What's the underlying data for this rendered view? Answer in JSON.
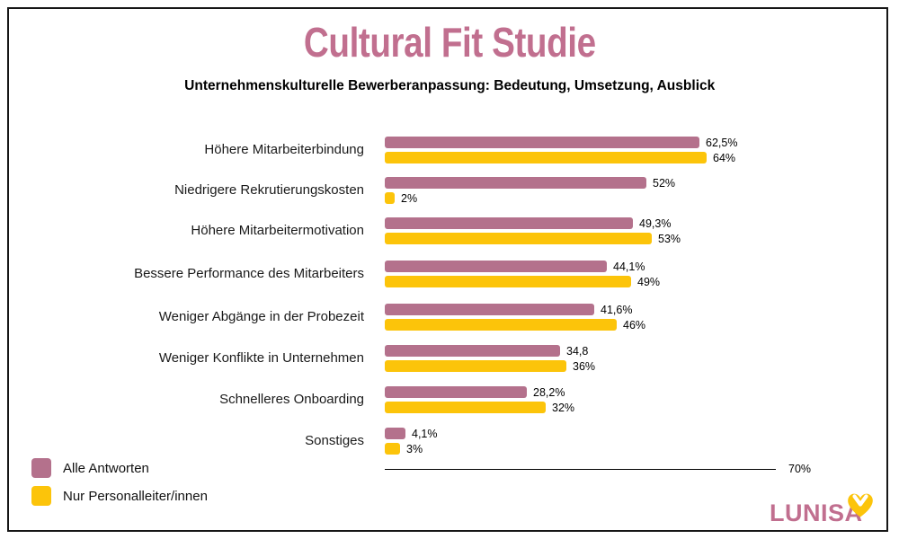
{
  "header": {
    "title": "Cultural Fit Studie",
    "subtitle": "Unternehmenskulturelle Bewerberanpassung: Bedeutung, Umsetzung, Ausblick"
  },
  "chart_data": {
    "type": "bar",
    "orientation": "horizontal",
    "title": "Cultural Fit Studie",
    "subtitle": "Unternehmenskulturelle Bewerberanpassung: Bedeutung, Umsetzung, Ausblick",
    "categories": [
      "Höhere Mitarbeiterbindung",
      "Niedrigere Rekrutierungskosten",
      "Höhere Mitarbeitermotivation",
      "Bessere Performance des Mitarbeiters",
      "Weniger Abgänge in der Probezeit",
      "Weniger Konflikte in Unternehmen",
      "Schnelleres Onboarding",
      "Sonstiges"
    ],
    "series": [
      {
        "name": "Alle Antworten",
        "color": "#b4718c",
        "values": [
          62.5,
          52,
          49.3,
          44.1,
          41.6,
          34.8,
          28.2,
          4.1
        ],
        "display_labels": [
          "62,5%",
          "52%",
          "49,3%",
          "44,1%",
          "41,6%",
          "34,8",
          "28,2%",
          "4,1%"
        ]
      },
      {
        "name": "Nur Personalleiter/innen",
        "color": "#fcc40a",
        "values": [
          64,
          2,
          53,
          49,
          46,
          36,
          32,
          3
        ],
        "display_labels": [
          "64%",
          "2%",
          "53%",
          "49%",
          "46%",
          "36%",
          "32%",
          "3%"
        ]
      }
    ],
    "xlim": [
      0,
      70
    ],
    "axis_end_label": "70%",
    "grid": false,
    "legend_position": "bottom-left"
  },
  "legend": {
    "items": [
      {
        "label": "Alle Antworten",
        "color": "#b4718c"
      },
      {
        "label": "Nur Personalleiter/innen",
        "color": "#fcc40a"
      }
    ]
  },
  "axis": {
    "end_label": "70%"
  },
  "footer": {
    "brand": "LUNISA",
    "brand_color": "#c16f8f",
    "heart_icon_color": "#fcc40a"
  },
  "colors": {
    "title": "#c16f8f",
    "bar_pink": "#b4718c",
    "bar_yellow": "#fcc40a",
    "frame": "#161616"
  }
}
